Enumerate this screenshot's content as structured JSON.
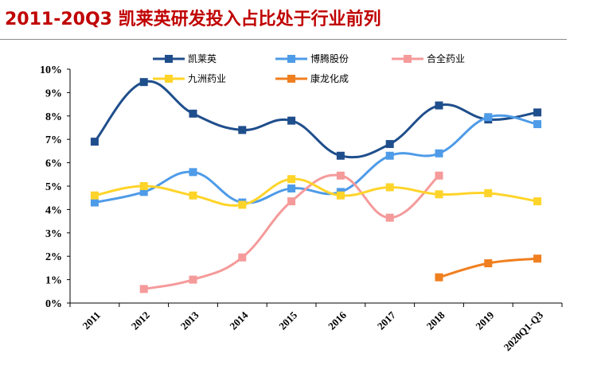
{
  "header": {
    "title": "2011-20Q3 凯莱英研发投入占比处于行业前列"
  },
  "colors": {
    "title": "#c00000",
    "axis": "#000000"
  },
  "chart_data": {
    "type": "line",
    "title": "2011-20Q3 凯莱英研发投入占比处于行业前列",
    "xlabel": "",
    "ylabel": "",
    "ylim": [
      0,
      10
    ],
    "yticks": [
      "0%",
      "1%",
      "2%",
      "3%",
      "4%",
      "5%",
      "6%",
      "7%",
      "8%",
      "9%",
      "10%"
    ],
    "categories": [
      "2011",
      "2012",
      "2013",
      "2014",
      "2015",
      "2016",
      "2017",
      "2018",
      "2019",
      "2020Q1-Q3"
    ],
    "grid": false,
    "legend_position": "top",
    "series": [
      {
        "name": "凯莱英",
        "color": "#1f4e8c",
        "values": [
          6.9,
          9.45,
          8.1,
          7.4,
          7.8,
          6.3,
          6.8,
          8.45,
          7.85,
          8.15
        ]
      },
      {
        "name": "博腾股份",
        "color": "#4e9be8",
        "values": [
          4.3,
          4.75,
          5.6,
          4.3,
          4.9,
          4.75,
          6.3,
          6.4,
          7.95,
          7.65
        ]
      },
      {
        "name": "合全药业",
        "color": "#f59a9a",
        "values": [
          null,
          0.6,
          1.0,
          1.95,
          4.35,
          5.45,
          3.65,
          5.45,
          null,
          null
        ]
      },
      {
        "name": "九洲药业",
        "color": "#ffd42a",
        "values": [
          4.6,
          5.0,
          4.6,
          4.2,
          5.3,
          4.6,
          4.95,
          4.65,
          4.7,
          4.35
        ]
      },
      {
        "name": "康龙化成",
        "color": "#f07f1f",
        "values": [
          null,
          null,
          null,
          null,
          null,
          null,
          null,
          1.1,
          1.7,
          1.9
        ]
      }
    ]
  }
}
